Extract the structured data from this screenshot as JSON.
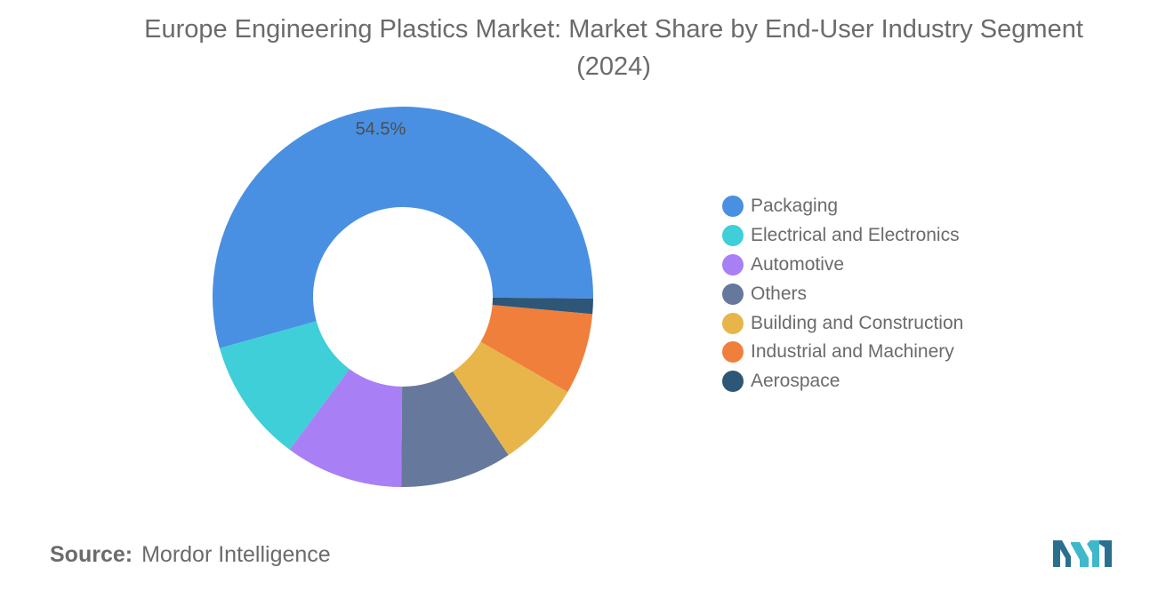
{
  "title": "Europe Engineering Plastics Market: Market Share by End-User Industry Segment (2024)",
  "source": {
    "label": "Source:",
    "value": "Mordor Intelligence"
  },
  "chart_data": {
    "type": "pie",
    "categories": [
      "Packaging",
      "Electrical and Electronics",
      "Automotive",
      "Others",
      "Building and Construction",
      "Industrial and Machinery",
      "Aerospace"
    ],
    "values": [
      54.5,
      10.5,
      10.0,
      9.5,
      7.3,
      6.9,
      1.3
    ],
    "colors": [
      "#4a90e2",
      "#3ecfd8",
      "#a97ff5",
      "#66789b",
      "#e8b54b",
      "#f07f3c",
      "#2d5677"
    ],
    "data_labels": [
      "54.5%",
      "",
      "",
      "",
      "",
      "",
      ""
    ],
    "donut": true,
    "start_angle_deg": -0.5,
    "legend_position": "right"
  }
}
